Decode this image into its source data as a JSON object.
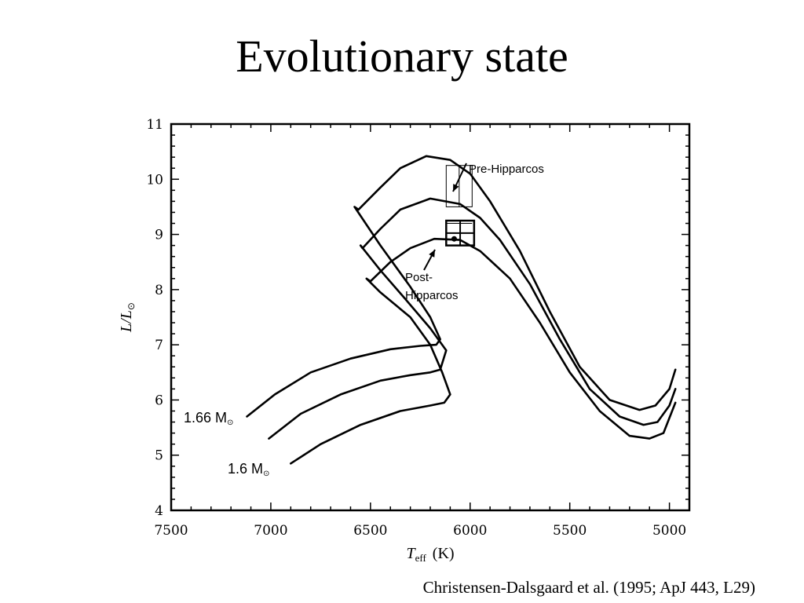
{
  "slide": {
    "title": "Evolutionary state",
    "citation": "Christensen-Dalsgaard et al. (1995; ApJ 443, L29)"
  },
  "chart_data": {
    "type": "line",
    "title": "",
    "xlabel": "T",
    "xlabel_sub": "eff",
    "xlabel_unit": "(K)",
    "ylabel": "L/L",
    "ylabel_sub": "⊙",
    "xlim": [
      7500,
      4900
    ],
    "ylim": [
      4,
      11
    ],
    "x_reversed": true,
    "grid": false,
    "x_ticks": [
      7500,
      7000,
      6500,
      6000,
      5500,
      5000
    ],
    "y_ticks": [
      4,
      5,
      6,
      7,
      8,
      9,
      10,
      11
    ],
    "series": [
      {
        "name": "1.66 M",
        "points": [
          [
            7120,
            5.7
          ],
          [
            6980,
            6.1
          ],
          [
            6800,
            6.5
          ],
          [
            6600,
            6.75
          ],
          [
            6400,
            6.92
          ],
          [
            6250,
            6.98
          ],
          [
            6170,
            7.0
          ],
          [
            6150,
            7.1
          ],
          [
            6200,
            7.5
          ],
          [
            6300,
            8.05
          ],
          [
            6450,
            8.8
          ],
          [
            6580,
            9.5
          ],
          [
            6560,
            9.45
          ],
          [
            6450,
            9.85
          ],
          [
            6350,
            10.2
          ],
          [
            6220,
            10.42
          ],
          [
            6100,
            10.35
          ],
          [
            6000,
            10.1
          ],
          [
            5900,
            9.6
          ],
          [
            5750,
            8.7
          ],
          [
            5600,
            7.6
          ],
          [
            5450,
            6.6
          ],
          [
            5300,
            6.0
          ],
          [
            5150,
            5.82
          ],
          [
            5070,
            5.9
          ],
          [
            5000,
            6.2
          ],
          [
            4970,
            6.55
          ]
        ]
      },
      {
        "name": "",
        "points": [
          [
            7010,
            5.3
          ],
          [
            6850,
            5.75
          ],
          [
            6650,
            6.1
          ],
          [
            6450,
            6.35
          ],
          [
            6300,
            6.45
          ],
          [
            6200,
            6.5
          ],
          [
            6150,
            6.55
          ],
          [
            6120,
            6.9
          ],
          [
            6200,
            7.3
          ],
          [
            6330,
            7.85
          ],
          [
            6450,
            8.35
          ],
          [
            6550,
            8.8
          ],
          [
            6540,
            8.75
          ],
          [
            6450,
            9.1
          ],
          [
            6350,
            9.45
          ],
          [
            6200,
            9.65
          ],
          [
            6050,
            9.55
          ],
          [
            5950,
            9.3
          ],
          [
            5850,
            8.9
          ],
          [
            5700,
            8.1
          ],
          [
            5550,
            7.1
          ],
          [
            5400,
            6.2
          ],
          [
            5250,
            5.7
          ],
          [
            5130,
            5.55
          ],
          [
            5060,
            5.6
          ],
          [
            5000,
            5.9
          ],
          [
            4970,
            6.2
          ]
        ]
      },
      {
        "name": "1.6 M",
        "points": [
          [
            6900,
            4.85
          ],
          [
            6750,
            5.2
          ],
          [
            6550,
            5.55
          ],
          [
            6350,
            5.8
          ],
          [
            6200,
            5.9
          ],
          [
            6130,
            5.95
          ],
          [
            6100,
            6.1
          ],
          [
            6140,
            6.5
          ],
          [
            6200,
            7.0
          ],
          [
            6300,
            7.5
          ],
          [
            6450,
            7.95
          ],
          [
            6520,
            8.2
          ],
          [
            6500,
            8.15
          ],
          [
            6400,
            8.5
          ],
          [
            6300,
            8.75
          ],
          [
            6180,
            8.92
          ],
          [
            6050,
            8.9
          ],
          [
            5950,
            8.7
          ],
          [
            5800,
            8.2
          ],
          [
            5650,
            7.4
          ],
          [
            5500,
            6.5
          ],
          [
            5350,
            5.8
          ],
          [
            5200,
            5.35
          ],
          [
            5100,
            5.3
          ],
          [
            5030,
            5.4
          ],
          [
            4970,
            5.95
          ]
        ]
      }
    ],
    "annotations": {
      "pre_hipparcos": "Pre-Hipparcos",
      "post_hipparcos_line1": "Post-",
      "post_hipparcos_line2": "Hipparcos",
      "pre_box": {
        "x": [
          6120,
          5990
        ],
        "y": [
          9.5,
          10.25
        ]
      },
      "post_box": {
        "x": [
          6120,
          5980
        ],
        "y": [
          8.8,
          9.25
        ]
      },
      "post_point": {
        "x": 6080,
        "y": 8.92
      }
    }
  }
}
